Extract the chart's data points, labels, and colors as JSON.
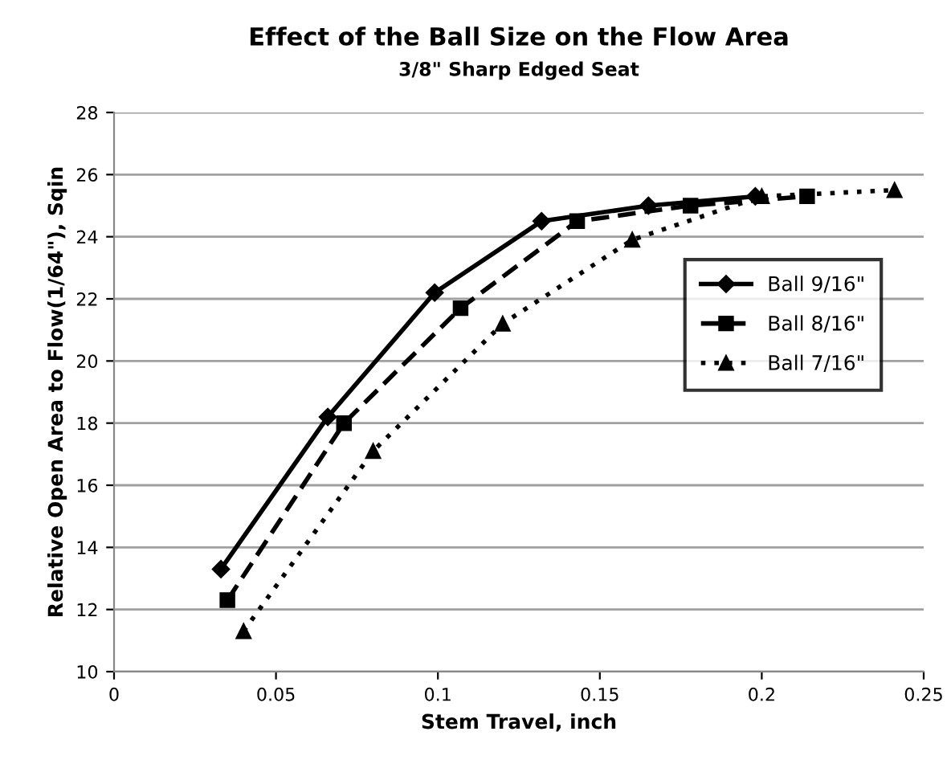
{
  "chart_data": {
    "type": "line",
    "title": "Effect of the Ball Size on the Flow Area",
    "subtitle": "3/8\" Sharp Edged Seat",
    "xlabel": "Stem Travel, inch",
    "ylabel": "Relative Open Area to Flow(1/64\"), Sqin",
    "xlim": [
      0,
      0.25
    ],
    "xticks": [
      0,
      0.05,
      0.1,
      0.15,
      0.2,
      0.25
    ],
    "ylim": [
      10,
      28
    ],
    "yticks": [
      10,
      12,
      14,
      16,
      18,
      20,
      22,
      24,
      26,
      28
    ],
    "grid": "y",
    "legend": "right",
    "series": [
      {
        "name": "Ball 9/16\"",
        "color": "#000000",
        "marker": "diamond",
        "line_style": "solid",
        "x": [
          0.033,
          0.066,
          0.099,
          0.132,
          0.165,
          0.198
        ],
        "values": [
          13.3,
          18.2,
          22.2,
          24.5,
          25.0,
          25.3
        ]
      },
      {
        "name": "Ball 8/16\"",
        "color": "#000000",
        "marker": "square",
        "line_style": "dashed",
        "x": [
          0.035,
          0.071,
          0.107,
          0.143,
          0.178,
          0.214
        ],
        "values": [
          12.3,
          18.0,
          21.7,
          24.5,
          25.0,
          25.3
        ]
      },
      {
        "name": "Ball 7/16\"",
        "color": "#000000",
        "marker": "triangle",
        "line_style": "dotted",
        "x": [
          0.04,
          0.08,
          0.12,
          0.16,
          0.2,
          0.241
        ],
        "values": [
          11.3,
          17.1,
          21.2,
          23.9,
          25.3,
          25.5
        ]
      }
    ]
  }
}
